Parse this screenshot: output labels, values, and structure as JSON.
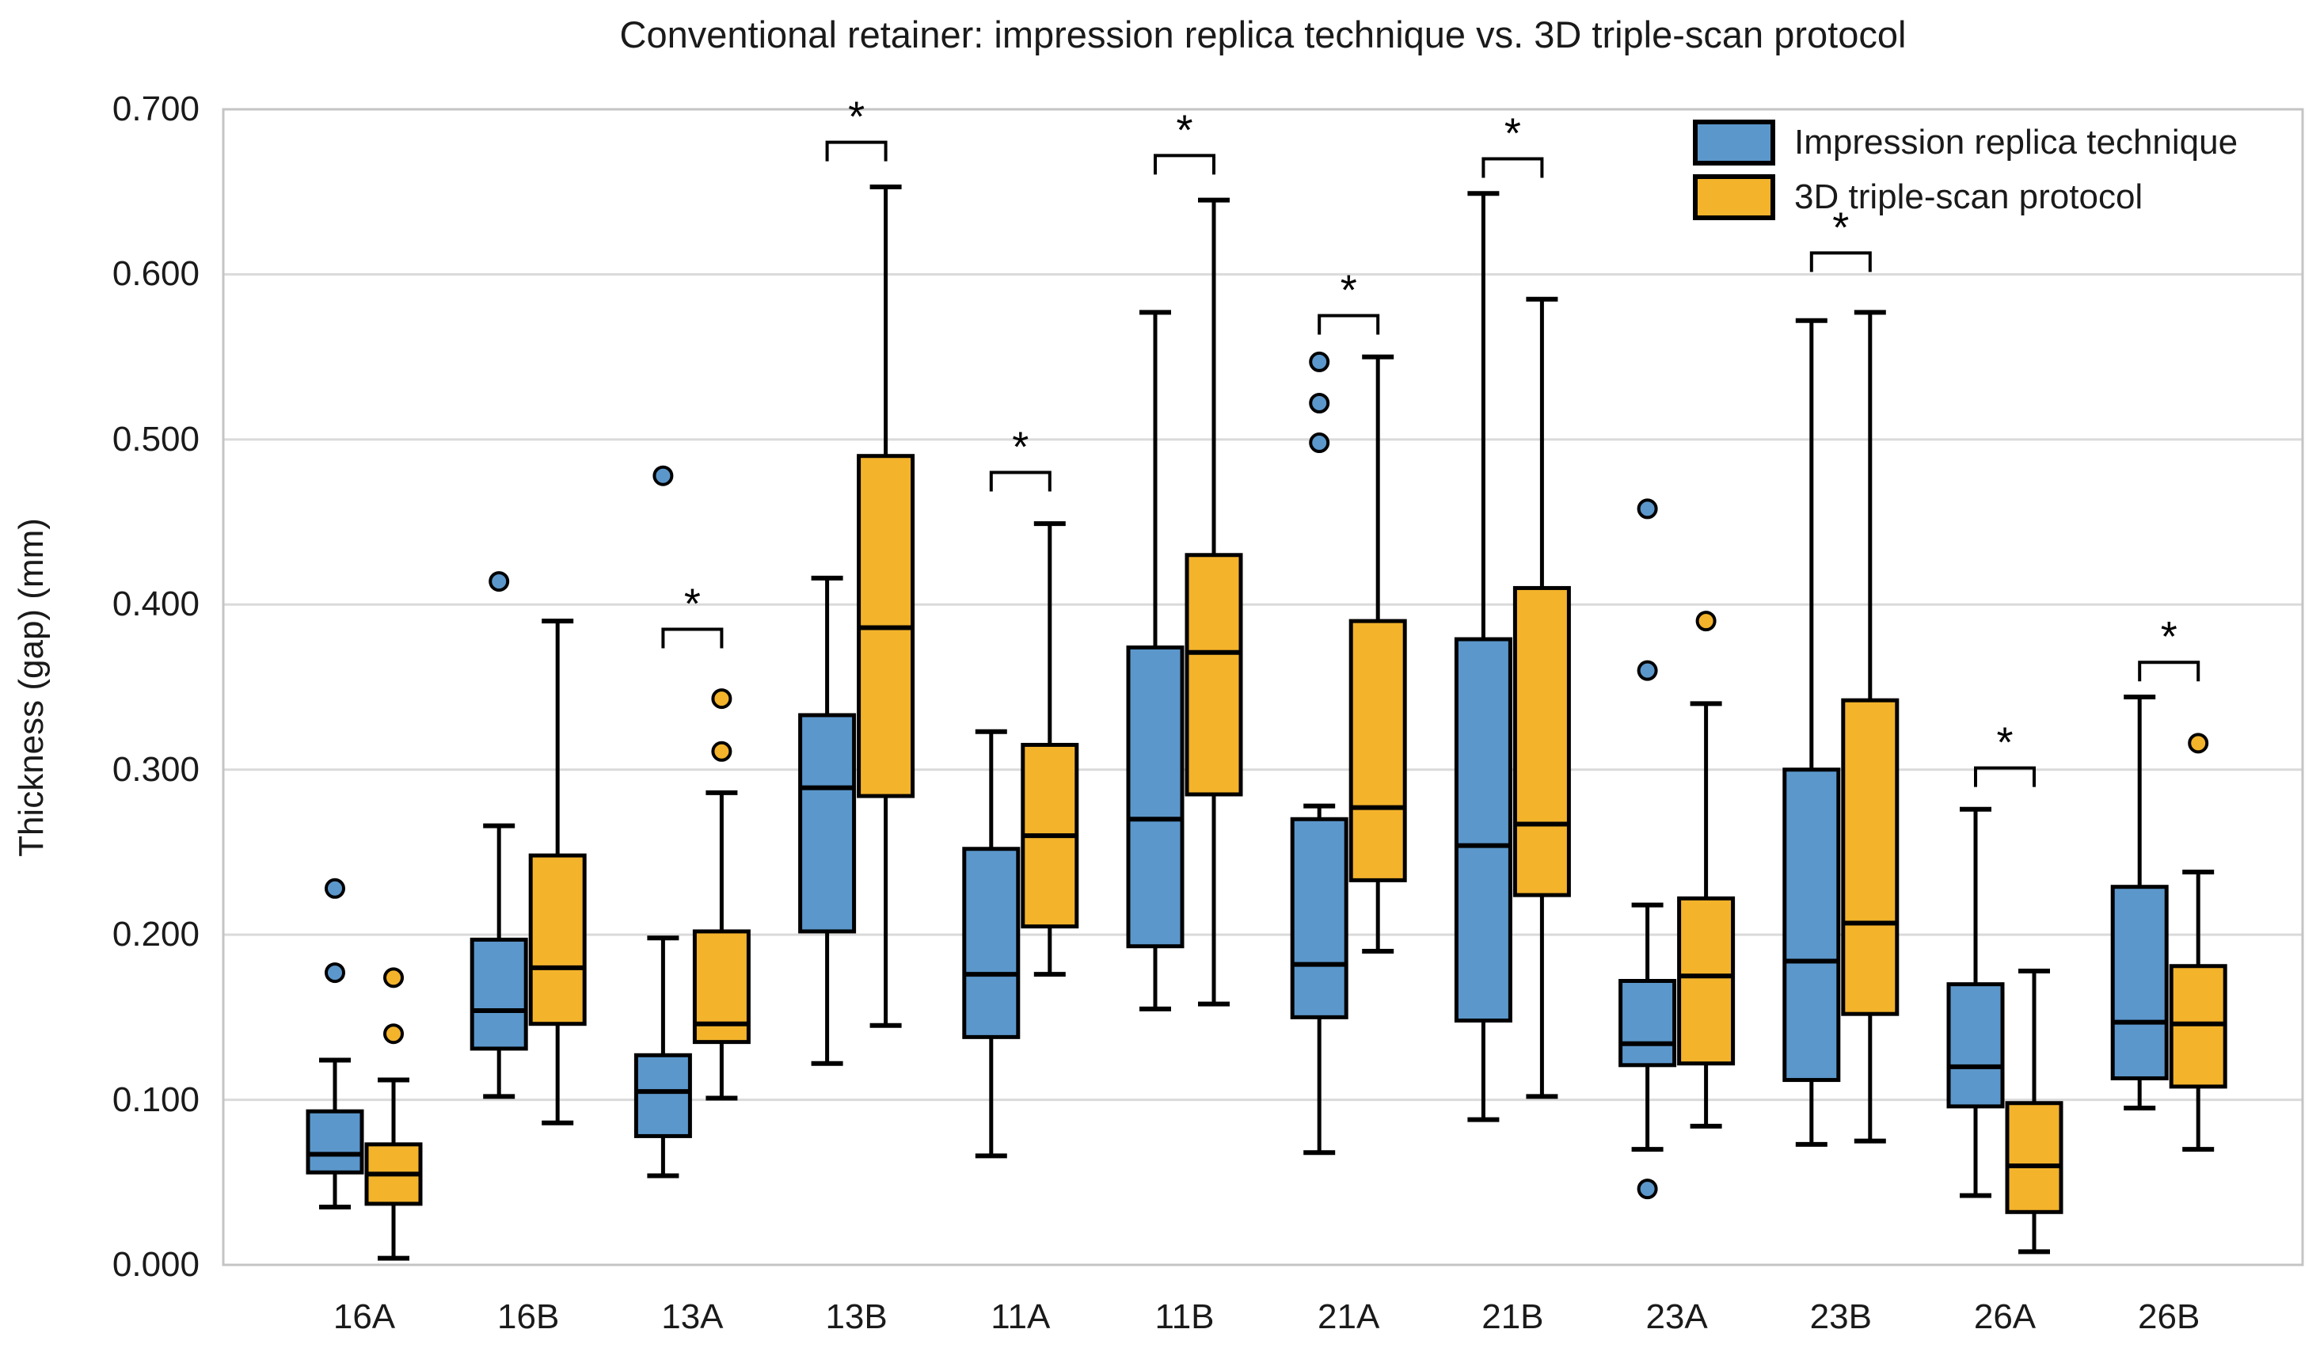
{
  "title": "Conventional retainer: impression replica technique vs. 3D triple-scan protocol",
  "y_axis": {
    "label": "Thickness (gap) (mm)",
    "min": 0.0,
    "max": 0.7,
    "tick_step": 0.1,
    "tick_labels": [
      "0.000",
      "0.100",
      "0.200",
      "0.300",
      "0.400",
      "0.500",
      "0.600",
      "0.700"
    ],
    "grid": true
  },
  "x_axis": {
    "categories": [
      "16A",
      "16B",
      "13A",
      "13B",
      "11A",
      "11B",
      "21A",
      "21B",
      "23A",
      "23B",
      "26A",
      "26B"
    ]
  },
  "legend": {
    "position": "top-right-inside",
    "items": [
      {
        "label": "Impression replica technique",
        "color": "#5b97cb"
      },
      {
        "label": "3D triple-scan protocol",
        "color": "#f3b32b"
      }
    ]
  },
  "chart_data": {
    "type": "boxplot",
    "title": "Conventional retainer: impression replica technique vs. 3D triple-scan protocol",
    "xlabel": "",
    "ylabel": "Thickness (gap) (mm)",
    "ylim": [
      0.0,
      0.7
    ],
    "categories": [
      "16A",
      "16B",
      "13A",
      "13B",
      "11A",
      "11B",
      "21A",
      "21B",
      "23A",
      "23B",
      "26A",
      "26B"
    ],
    "series": [
      {
        "name": "Impression replica technique",
        "color": "#5b97cb",
        "boxes": [
          {
            "category": "16A",
            "low": 0.035,
            "q1": 0.056,
            "median": 0.067,
            "q3": 0.093,
            "high": 0.124,
            "outliers": [
              0.177,
              0.228
            ]
          },
          {
            "category": "16B",
            "low": 0.102,
            "q1": 0.131,
            "median": 0.154,
            "q3": 0.197,
            "high": 0.266,
            "outliers": [
              0.414
            ]
          },
          {
            "category": "13A",
            "low": 0.054,
            "q1": 0.078,
            "median": 0.105,
            "q3": 0.127,
            "high": 0.198,
            "outliers": [
              0.478
            ]
          },
          {
            "category": "13B",
            "low": 0.122,
            "q1": 0.202,
            "median": 0.289,
            "q3": 0.333,
            "high": 0.416,
            "outliers": []
          },
          {
            "category": "11A",
            "low": 0.066,
            "q1": 0.138,
            "median": 0.176,
            "q3": 0.252,
            "high": 0.323,
            "outliers": []
          },
          {
            "category": "11B",
            "low": 0.155,
            "q1": 0.193,
            "median": 0.27,
            "q3": 0.374,
            "high": 0.577,
            "outliers": []
          },
          {
            "category": "21A",
            "low": 0.068,
            "q1": 0.15,
            "median": 0.182,
            "q3": 0.27,
            "high": 0.278,
            "outliers": [
              0.498,
              0.522,
              0.547
            ]
          },
          {
            "category": "21B",
            "low": 0.088,
            "q1": 0.148,
            "median": 0.254,
            "q3": 0.379,
            "high": 0.649,
            "outliers": []
          },
          {
            "category": "23A",
            "low": 0.07,
            "q1": 0.121,
            "median": 0.134,
            "q3": 0.172,
            "high": 0.218,
            "outliers": [
              0.046,
              0.36,
              0.458
            ]
          },
          {
            "category": "23B",
            "low": 0.073,
            "q1": 0.112,
            "median": 0.184,
            "q3": 0.3,
            "high": 0.572,
            "outliers": []
          },
          {
            "category": "26A",
            "low": 0.042,
            "q1": 0.096,
            "median": 0.12,
            "q3": 0.17,
            "high": 0.276,
            "outliers": []
          },
          {
            "category": "26B",
            "low": 0.095,
            "q1": 0.113,
            "median": 0.147,
            "q3": 0.229,
            "high": 0.344,
            "outliers": []
          }
        ]
      },
      {
        "name": "3D triple-scan protocol",
        "color": "#f3b32b",
        "boxes": [
          {
            "category": "16A",
            "low": 0.004,
            "q1": 0.037,
            "median": 0.055,
            "q3": 0.073,
            "high": 0.112,
            "outliers": [
              0.14,
              0.174
            ]
          },
          {
            "category": "16B",
            "low": 0.086,
            "q1": 0.146,
            "median": 0.18,
            "q3": 0.248,
            "high": 0.39,
            "outliers": []
          },
          {
            "category": "13A",
            "low": 0.101,
            "q1": 0.135,
            "median": 0.146,
            "q3": 0.202,
            "high": 0.286,
            "outliers": [
              0.311,
              0.343
            ]
          },
          {
            "category": "13B",
            "low": 0.145,
            "q1": 0.284,
            "median": 0.386,
            "q3": 0.49,
            "high": 0.653,
            "outliers": []
          },
          {
            "category": "11A",
            "low": 0.176,
            "q1": 0.205,
            "median": 0.26,
            "q3": 0.315,
            "high": 0.449,
            "outliers": []
          },
          {
            "category": "11B",
            "low": 0.158,
            "q1": 0.285,
            "median": 0.371,
            "q3": 0.43,
            "high": 0.645,
            "outliers": []
          },
          {
            "category": "21A",
            "low": 0.19,
            "q1": 0.233,
            "median": 0.277,
            "q3": 0.39,
            "high": 0.55,
            "outliers": []
          },
          {
            "category": "21B",
            "low": 0.102,
            "q1": 0.224,
            "median": 0.267,
            "q3": 0.41,
            "high": 0.585,
            "outliers": []
          },
          {
            "category": "23A",
            "low": 0.084,
            "q1": 0.122,
            "median": 0.175,
            "q3": 0.222,
            "high": 0.34,
            "outliers": [
              0.39
            ]
          },
          {
            "category": "23B",
            "low": 0.075,
            "q1": 0.152,
            "median": 0.207,
            "q3": 0.342,
            "high": 0.577,
            "outliers": []
          },
          {
            "category": "26A",
            "low": 0.008,
            "q1": 0.032,
            "median": 0.06,
            "q3": 0.098,
            "high": 0.178,
            "outliers": []
          },
          {
            "category": "26B",
            "low": 0.07,
            "q1": 0.108,
            "median": 0.146,
            "q3": 0.181,
            "high": 0.238,
            "outliers": [
              0.316
            ]
          }
        ]
      }
    ],
    "significance_brackets": [
      {
        "category": "13A",
        "y": 0.385,
        "label": "*"
      },
      {
        "category": "13B",
        "y": 0.68,
        "label": "*"
      },
      {
        "category": "11A",
        "y": 0.48,
        "label": "*"
      },
      {
        "category": "11B",
        "y": 0.672,
        "label": "*"
      },
      {
        "category": "21A",
        "y": 0.575,
        "label": "*"
      },
      {
        "category": "21B",
        "y": 0.67,
        "label": "*"
      },
      {
        "category": "23B",
        "y": 0.613,
        "label": "*"
      },
      {
        "category": "26A",
        "y": 0.301,
        "label": "*"
      },
      {
        "category": "26B",
        "y": 0.365,
        "label": "*"
      }
    ]
  }
}
